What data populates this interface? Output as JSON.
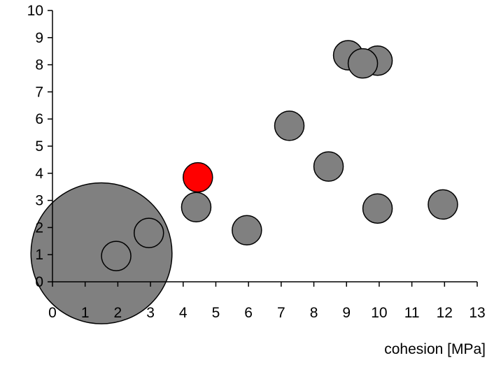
{
  "chart_data": {
    "type": "scatter",
    "title": "",
    "xlabel": "cohesion [MPa]",
    "ylabel": "",
    "xlim": [
      0,
      13
    ],
    "ylim": [
      0,
      10
    ],
    "xticks": [
      "0",
      "1",
      "2",
      "3",
      "4",
      "5",
      "6",
      "7",
      "8",
      "9",
      "10",
      "11",
      "12",
      "13"
    ],
    "yticks": [
      "0",
      "1",
      "2",
      "3",
      "4",
      "5",
      "6",
      "7",
      "8",
      "9",
      "10"
    ],
    "grid": false,
    "default_color": "#808080",
    "highlight_color": "#ff0000",
    "points": [
      {
        "x": 1.5,
        "y": 1.05,
        "size": 4.8,
        "color": "#808080"
      },
      {
        "x": 1.95,
        "y": 0.95,
        "size": 1.0,
        "color": "#808080"
      },
      {
        "x": 2.95,
        "y": 1.8,
        "size": 1.0,
        "color": "#808080"
      },
      {
        "x": 4.4,
        "y": 2.75,
        "size": 1.0,
        "color": "#808080"
      },
      {
        "x": 4.45,
        "y": 3.85,
        "size": 1.0,
        "color": "#ff0000"
      },
      {
        "x": 5.95,
        "y": 1.9,
        "size": 1.0,
        "color": "#808080"
      },
      {
        "x": 7.25,
        "y": 5.75,
        "size": 1.0,
        "color": "#808080"
      },
      {
        "x": 8.45,
        "y": 4.25,
        "size": 1.0,
        "color": "#808080"
      },
      {
        "x": 9.05,
        "y": 8.35,
        "size": 1.0,
        "color": "#808080"
      },
      {
        "x": 9.95,
        "y": 8.15,
        "size": 1.0,
        "color": "#808080"
      },
      {
        "x": 9.5,
        "y": 8.05,
        "size": 1.0,
        "color": "#808080"
      },
      {
        "x": 9.95,
        "y": 2.7,
        "size": 1.0,
        "color": "#808080"
      },
      {
        "x": 11.95,
        "y": 2.85,
        "size": 1.0,
        "color": "#808080"
      }
    ]
  }
}
